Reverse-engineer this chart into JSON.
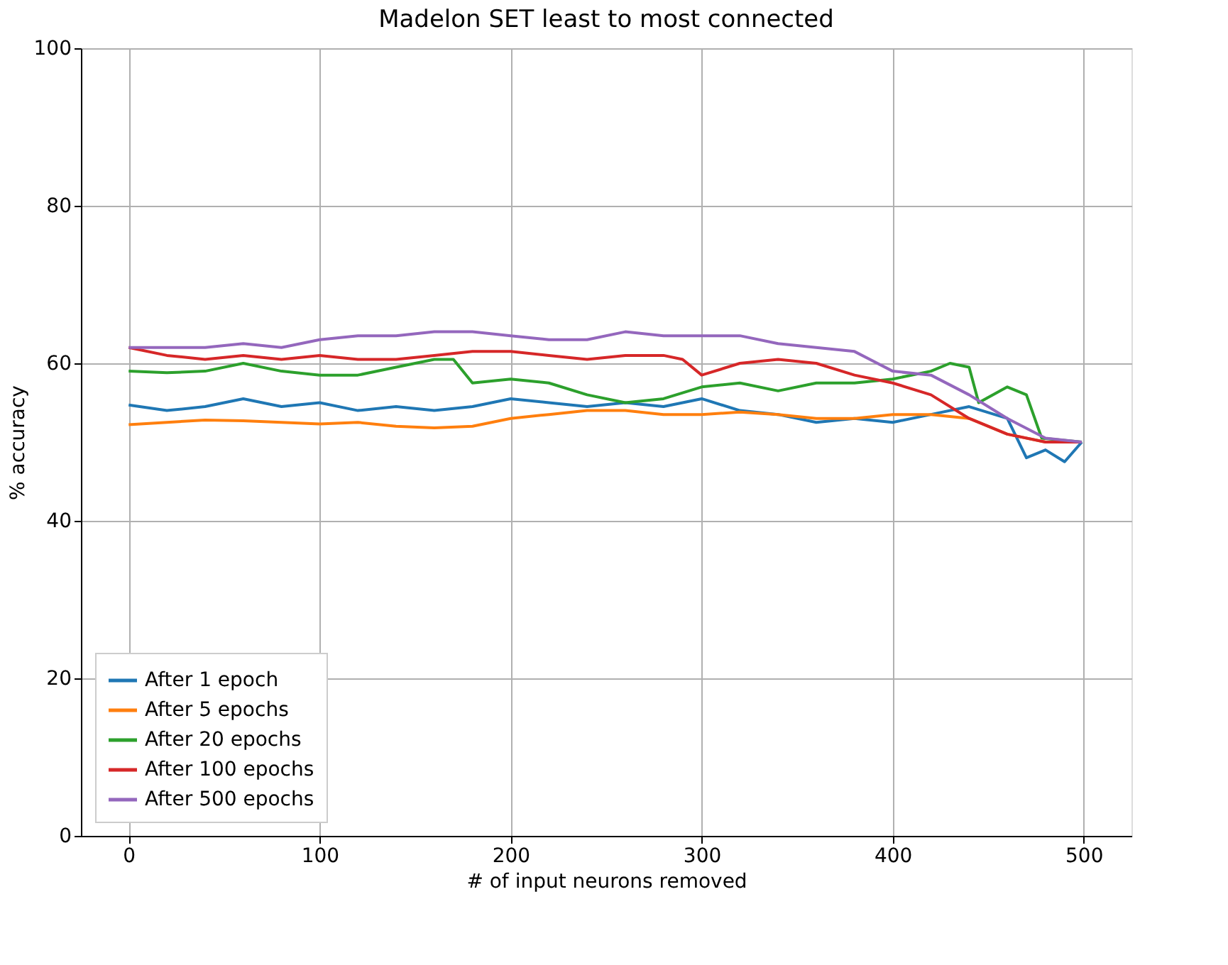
{
  "chart_data": {
    "type": "line",
    "title": "Madelon SET least to most connected",
    "xlabel": "# of input neurons removed",
    "ylabel": "% accuracy",
    "xlim": [
      -25,
      525
    ],
    "ylim": [
      0,
      100
    ],
    "xticks": [
      0,
      100,
      200,
      300,
      400,
      500
    ],
    "yticks": [
      0,
      20,
      40,
      60,
      80,
      100
    ],
    "grid": true,
    "legend": "bottom left",
    "marker": "none",
    "line_style": "solid",
    "series": [
      {
        "name": "After 1 epoch",
        "color": "#1f77b4",
        "x": [
          0,
          20,
          40,
          60,
          80,
          100,
          120,
          140,
          160,
          180,
          200,
          220,
          240,
          260,
          280,
          300,
          320,
          340,
          360,
          380,
          400,
          420,
          440,
          460,
          470,
          480,
          490,
          499
        ],
        "values": [
          54.7,
          54,
          54.5,
          55.5,
          54.5,
          55,
          54,
          54.5,
          54,
          54.5,
          55.5,
          55,
          54.5,
          55,
          54.5,
          55.5,
          54,
          53.5,
          52.5,
          53,
          52.5,
          53.5,
          54.5,
          53,
          48,
          49,
          47.5,
          50
        ]
      },
      {
        "name": "After 5 epochs",
        "color": "#ff7f0e",
        "x": [
          0,
          20,
          40,
          60,
          80,
          100,
          120,
          140,
          160,
          180,
          200,
          220,
          240,
          260,
          280,
          300,
          320,
          340,
          360,
          380,
          400,
          420,
          440,
          460,
          480,
          499
        ],
        "values": [
          52.2,
          52.5,
          52.8,
          52.7,
          52.5,
          52.3,
          52.5,
          52,
          51.8,
          52,
          53,
          53.5,
          54,
          54,
          53.5,
          53.5,
          53.8,
          53.5,
          53,
          53,
          53.5,
          53.5,
          53,
          51,
          50,
          50
        ]
      },
      {
        "name": "After 20 epochs",
        "color": "#2ca02c",
        "x": [
          0,
          20,
          40,
          60,
          80,
          100,
          120,
          140,
          160,
          170,
          180,
          200,
          220,
          240,
          260,
          280,
          300,
          320,
          340,
          360,
          380,
          400,
          420,
          430,
          440,
          445,
          460,
          470,
          478,
          499
        ],
        "values": [
          59,
          58.8,
          59,
          60,
          59,
          58.5,
          58.5,
          59.5,
          60.5,
          60.5,
          57.5,
          58,
          57.5,
          56,
          55,
          55.5,
          57,
          57.5,
          56.5,
          57.5,
          57.5,
          58,
          59,
          60,
          59.5,
          55,
          57,
          56,
          50.5,
          50
        ]
      },
      {
        "name": "After 100 epochs",
        "color": "#d62728",
        "x": [
          0,
          20,
          40,
          60,
          80,
          100,
          120,
          140,
          160,
          180,
          200,
          220,
          240,
          260,
          280,
          290,
          300,
          320,
          340,
          360,
          380,
          400,
          420,
          440,
          460,
          480,
          499
        ],
        "values": [
          62,
          61,
          60.5,
          61,
          60.5,
          61,
          60.5,
          60.5,
          61,
          61.5,
          61.5,
          61,
          60.5,
          61,
          61,
          60.5,
          58.5,
          60,
          60.5,
          60,
          58.5,
          57.5,
          56,
          53,
          51,
          50,
          50
        ]
      },
      {
        "name": "After 500 epochs",
        "color": "#9467bd",
        "x": [
          0,
          20,
          40,
          60,
          80,
          100,
          120,
          140,
          160,
          180,
          200,
          220,
          240,
          260,
          280,
          300,
          320,
          340,
          360,
          380,
          400,
          420,
          440,
          460,
          480,
          499
        ],
        "values": [
          62,
          62,
          62,
          62.5,
          62,
          63,
          63.5,
          63.5,
          64,
          64,
          63.5,
          63,
          63,
          64,
          63.5,
          63.5,
          63.5,
          62.5,
          62,
          61.5,
          59,
          58.5,
          56,
          53,
          50.5,
          50
        ]
      }
    ]
  }
}
